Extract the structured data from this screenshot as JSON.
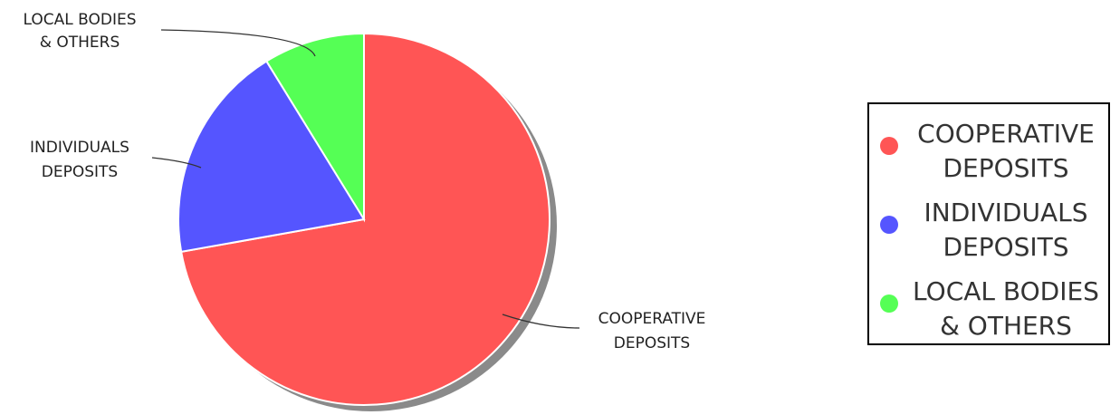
{
  "chart_data": {
    "type": "pie",
    "title": "",
    "slices": [
      {
        "label": [
          "COOPERATIVE",
          "DEPOSITS"
        ],
        "value": 72.2,
        "color": "#ff5555"
      },
      {
        "label": [
          "INDIVIDUALS",
          "DEPOSITS"
        ],
        "value": 19.0,
        "color": "#5555ff"
      },
      {
        "label": [
          "LOCAL BODIES",
          "& OTHERS"
        ],
        "value": 8.8,
        "color": "#55ff55"
      }
    ],
    "legend": {
      "position": "right",
      "items": [
        {
          "lines": [
            "COOPERATIVE",
            "DEPOSITS"
          ],
          "color": "#ff5555"
        },
        {
          "lines": [
            "INDIVIDUALS",
            "DEPOSITS"
          ],
          "color": "#5555ff"
        },
        {
          "lines": [
            "LOCAL BODIES",
            "& OTHERS"
          ],
          "color": "#55ff55"
        }
      ]
    }
  }
}
